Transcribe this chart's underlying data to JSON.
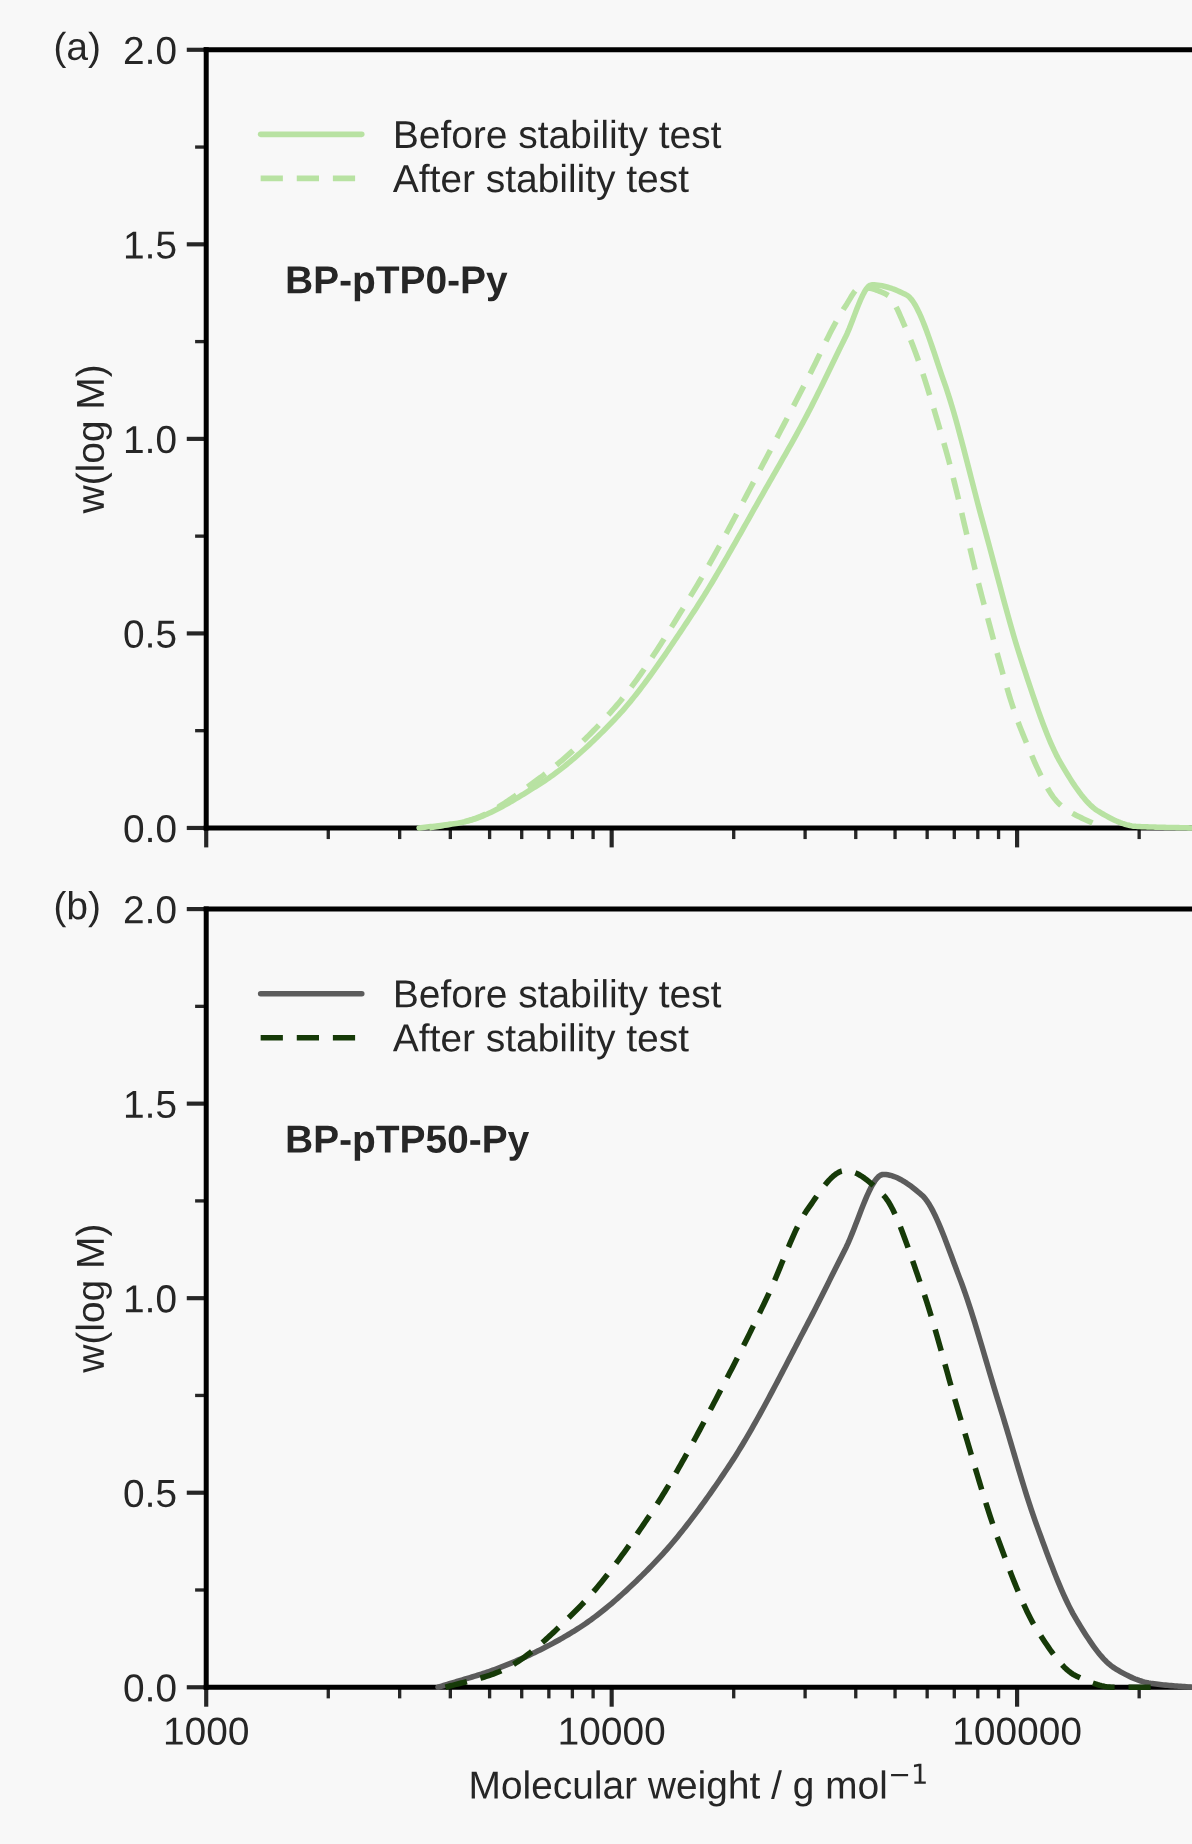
{
  "chart_data": [
    {
      "type": "line",
      "ylabel": "w(log M)",
      "annotations": [
        "(a)",
        "BP-pTP0-Py"
      ],
      "log": "x",
      "xlim": [
        1000,
        270000
      ],
      "xticks": [
        1000,
        10000,
        100000
      ],
      "ylim": [
        0,
        2.0
      ],
      "yticks": [
        {
          "value": 0,
          "label": "0.0"
        },
        {
          "value": 0.5,
          "label": "0.5"
        },
        {
          "value": 1.0,
          "label": "1.0"
        },
        {
          "value": 1.5,
          "label": "1.5"
        },
        {
          "value": 2.0,
          "label": "2.0"
        }
      ],
      "tick_labels": "y",
      "legend": "top left",
      "grid": false,
      "series": [
        {
          "name": "Before stability test",
          "color": "#b8e2a2",
          "line_style": "solid",
          "x": [
            3350,
            4260,
            6580,
            10190,
            15740,
            24320,
            30270,
            37670,
            43850,
            53330,
            66370,
            82600,
            102500,
            127600,
            158500,
            197200,
            270000
          ],
          "values": [
            0,
            0.014,
            0.11,
            0.28,
            0.547,
            0.883,
            1.06,
            1.26,
            1.396,
            1.37,
            1.14,
            0.78,
            0.43,
            0.17,
            0.043,
            0.004,
            0
          ]
        },
        {
          "name": "After stability test",
          "color": "#b8e2a2",
          "line_style": "dashed",
          "x": [
            3550,
            4470,
            6580,
            10190,
            15740,
            24320,
            30270,
            37670,
            41110,
            47860,
            53330,
            66370,
            82600,
            102500,
            127600,
            158500
          ],
          "values": [
            0,
            0.02,
            0.125,
            0.31,
            0.6,
            0.96,
            1.15,
            1.34,
            1.39,
            1.37,
            1.28,
            0.98,
            0.58,
            0.25,
            0.06,
            0.005
          ]
        }
      ]
    },
    {
      "type": "line",
      "xlabel": "Molecular weight / g mol$^{−1}$",
      "ylabel": "w(log M)",
      "annotations": [
        "(b)",
        "BP-pTP50-Py"
      ],
      "log": "x",
      "xlim": [
        1000,
        270000
      ],
      "xticks": [
        1000,
        10000,
        100000
      ],
      "ylim": [
        0,
        2.0
      ],
      "yticks": [
        {
          "value": 0,
          "label": "0.0"
        },
        {
          "value": 0.5,
          "label": "0.5"
        },
        {
          "value": 1.0,
          "label": "1.0"
        },
        {
          "value": 1.5,
          "label": "1.5"
        },
        {
          "value": 2.0,
          "label": "2.0"
        }
      ],
      "legend": "top left",
      "grid": false,
      "series": [
        {
          "name": "Before stability test",
          "color": "#5c5c5c",
          "line_style": "solid",
          "x": [
            3730,
            5280,
            8180,
            12650,
            19590,
            30270,
            37670,
            46770,
            58210,
            72440,
            90160,
            111900,
            139300,
            173400,
            213800,
            270000
          ],
          "values": [
            0,
            0.05,
            0.148,
            0.316,
            0.573,
            0.93,
            1.126,
            1.318,
            1.265,
            1.047,
            0.73,
            0.415,
            0.178,
            0.05,
            0.01,
            0
          ]
        },
        {
          "name": "After stability test",
          "color": "#163a08",
          "line_style": "dashed",
          "x": [
            3890,
            5280,
            8180,
            12650,
            19590,
            24320,
            30270,
            37670,
            46770,
            58210,
            72440,
            90160,
            111900,
            139300,
            173400,
            213800
          ],
          "values": [
            0,
            0.04,
            0.198,
            0.455,
            0.81,
            1.008,
            1.225,
            1.328,
            1.265,
            1.028,
            0.692,
            0.375,
            0.148,
            0.03,
            0,
            0
          ]
        }
      ]
    }
  ]
}
